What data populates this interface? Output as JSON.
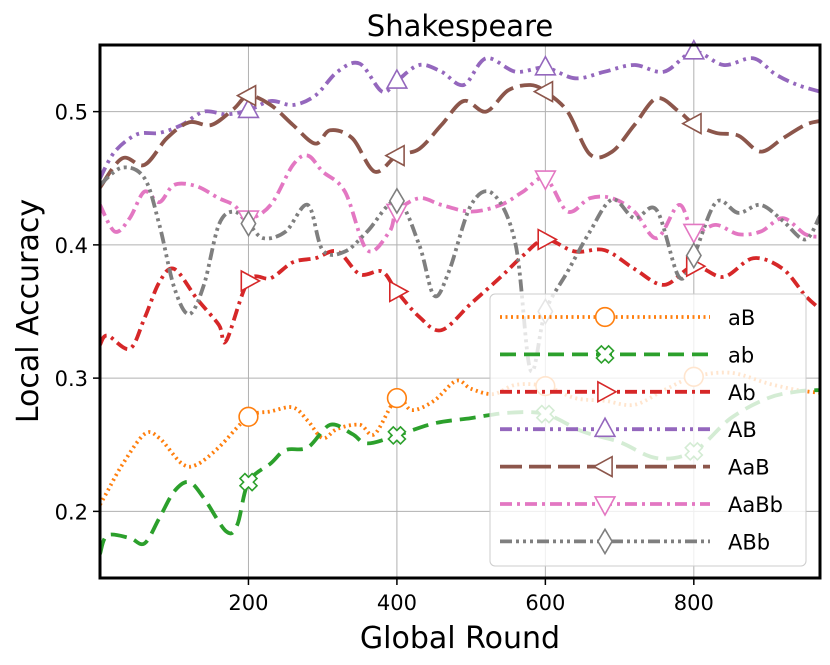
{
  "chart_data": {
    "type": "line",
    "title": "Shakespeare",
    "xlabel": "Global Round",
    "ylabel": "Local Accuracy",
    "xlim": [
      0,
      970
    ],
    "ylim": [
      0.15,
      0.55
    ],
    "xticks": [
      200,
      400,
      600,
      800
    ],
    "yticks": [
      0.2,
      0.3,
      0.4,
      0.5
    ],
    "xtick_labels": [
      "200",
      "400",
      "600",
      "800"
    ],
    "ytick_labels": [
      "0.2",
      "0.3",
      "0.4",
      "0.5"
    ],
    "grid": true,
    "legend_position": "lower-right",
    "marker_x": [
      200,
      400,
      600,
      800
    ],
    "series": [
      {
        "name": "aB",
        "color": "#ff7f0e",
        "dash": "dotted",
        "marker": "circle",
        "x": [
          0,
          10,
          30,
          60,
          80,
          110,
          130,
          160,
          200,
          230,
          260,
          280,
          300,
          320,
          350,
          370,
          400,
          420,
          450,
          480,
          500,
          530,
          560,
          600,
          640,
          680,
          720,
          760,
          800,
          850,
          900,
          940,
          970
        ],
        "y": [
          0.205,
          0.215,
          0.235,
          0.258,
          0.255,
          0.236,
          0.235,
          0.248,
          0.271,
          0.275,
          0.278,
          0.268,
          0.255,
          0.262,
          0.265,
          0.258,
          0.285,
          0.276,
          0.283,
          0.298,
          0.292,
          0.288,
          0.295,
          0.294,
          0.285,
          0.283,
          0.28,
          0.291,
          0.301,
          0.304,
          0.296,
          0.291,
          0.289
        ]
      },
      {
        "name": "ab",
        "color": "#2ca02c",
        "dash": "dashed",
        "marker": "X",
        "x": [
          0,
          10,
          40,
          60,
          80,
          100,
          120,
          140,
          170,
          185,
          200,
          230,
          250,
          280,
          310,
          340,
          360,
          400,
          450,
          500,
          550,
          600,
          650,
          700,
          750,
          800,
          850,
          900,
          940,
          970
        ],
        "y": [
          0.168,
          0.182,
          0.18,
          0.176,
          0.195,
          0.215,
          0.222,
          0.21,
          0.185,
          0.19,
          0.222,
          0.236,
          0.246,
          0.248,
          0.265,
          0.258,
          0.251,
          0.257,
          0.266,
          0.27,
          0.274,
          0.273,
          0.26,
          0.252,
          0.24,
          0.245,
          0.27,
          0.285,
          0.29,
          0.291
        ]
      },
      {
        "name": "Ab",
        "color": "#d62728",
        "dash": "dashdot",
        "marker": "triangle-right",
        "x": [
          0,
          10,
          40,
          60,
          80,
          100,
          130,
          160,
          170,
          200,
          230,
          260,
          290,
          320,
          350,
          380,
          400,
          430,
          460,
          500,
          540,
          570,
          600,
          640,
          680,
          720,
          760,
          800,
          840,
          880,
          920,
          950,
          970
        ],
        "y": [
          0.325,
          0.332,
          0.322,
          0.345,
          0.372,
          0.382,
          0.36,
          0.34,
          0.328,
          0.373,
          0.375,
          0.387,
          0.39,
          0.395,
          0.378,
          0.38,
          0.365,
          0.346,
          0.336,
          0.356,
          0.376,
          0.392,
          0.404,
          0.395,
          0.396,
          0.382,
          0.37,
          0.384,
          0.376,
          0.39,
          0.382,
          0.362,
          0.352
        ]
      },
      {
        "name": "AB",
        "color": "#9467bd",
        "dash": "dashdotdot",
        "marker": "triangle-up",
        "x": [
          0,
          20,
          50,
          80,
          110,
          140,
          170,
          200,
          230,
          260,
          290,
          320,
          350,
          380,
          400,
          430,
          460,
          490,
          520,
          560,
          600,
          640,
          680,
          720,
          760,
          800,
          840,
          880,
          910,
          940,
          970
        ],
        "y": [
          0.45,
          0.47,
          0.483,
          0.484,
          0.49,
          0.5,
          0.498,
          0.501,
          0.508,
          0.505,
          0.512,
          0.53,
          0.536,
          0.515,
          0.523,
          0.535,
          0.53,
          0.52,
          0.54,
          0.53,
          0.533,
          0.525,
          0.53,
          0.535,
          0.53,
          0.545,
          0.535,
          0.54,
          0.528,
          0.52,
          0.515
        ]
      },
      {
        "name": "AaB",
        "color": "#8c564b",
        "dash": "longdash",
        "marker": "triangle-left",
        "x": [
          0,
          30,
          60,
          90,
          120,
          150,
          180,
          200,
          230,
          260,
          290,
          310,
          340,
          370,
          400,
          430,
          460,
          490,
          520,
          550,
          580,
          600,
          630,
          660,
          690,
          720,
          750,
          780,
          800,
          830,
          860,
          890,
          920,
          950,
          970
        ],
        "y": [
          0.443,
          0.465,
          0.46,
          0.48,
          0.492,
          0.49,
          0.502,
          0.512,
          0.505,
          0.49,
          0.476,
          0.486,
          0.48,
          0.455,
          0.467,
          0.472,
          0.49,
          0.508,
          0.5,
          0.516,
          0.52,
          0.515,
          0.5,
          0.468,
          0.47,
          0.49,
          0.51,
          0.5,
          0.491,
          0.484,
          0.482,
          0.47,
          0.48,
          0.49,
          0.493
        ]
      },
      {
        "name": "AaBb",
        "color": "#e377c2",
        "dash": "dashdot",
        "marker": "triangle-down",
        "x": [
          0,
          20,
          40,
          60,
          80,
          100,
          130,
          160,
          180,
          200,
          230,
          260,
          280,
          300,
          330,
          360,
          390,
          400,
          430,
          460,
          500,
          540,
          570,
          600,
          630,
          660,
          690,
          720,
          750,
          780,
          800,
          830,
          860,
          890,
          920,
          950,
          970
        ],
        "y": [
          0.43,
          0.41,
          0.42,
          0.44,
          0.432,
          0.445,
          0.444,
          0.435,
          0.43,
          0.42,
          0.43,
          0.46,
          0.467,
          0.455,
          0.44,
          0.396,
          0.41,
          0.425,
          0.435,
          0.43,
          0.425,
          0.43,
          0.44,
          0.45,
          0.425,
          0.435,
          0.435,
          0.425,
          0.405,
          0.43,
          0.41,
          0.415,
          0.408,
          0.41,
          0.42,
          0.408,
          0.406
        ]
      },
      {
        "name": "ABb",
        "color": "#7f7f7f",
        "dash": "dashdotdotdot",
        "marker": "diamond",
        "x": [
          0,
          30,
          60,
          80,
          100,
          120,
          140,
          160,
          180,
          200,
          220,
          250,
          280,
          300,
          330,
          360,
          400,
          430,
          450,
          470,
          500,
          530,
          560,
          580,
          600,
          630,
          660,
          690,
          720,
          750,
          780,
          800,
          830,
          860,
          890,
          920,
          950,
          970
        ],
        "y": [
          0.445,
          0.458,
          0.45,
          0.415,
          0.368,
          0.348,
          0.37,
          0.415,
          0.425,
          0.416,
          0.405,
          0.41,
          0.43,
          0.396,
          0.395,
          0.41,
          0.433,
          0.4,
          0.362,
          0.38,
          0.43,
          0.438,
          0.4,
          0.306,
          0.35,
          0.38,
          0.41,
          0.434,
          0.42,
          0.426,
          0.376,
          0.392,
          0.432,
          0.424,
          0.43,
          0.418,
          0.404,
          0.422
        ]
      }
    ]
  }
}
